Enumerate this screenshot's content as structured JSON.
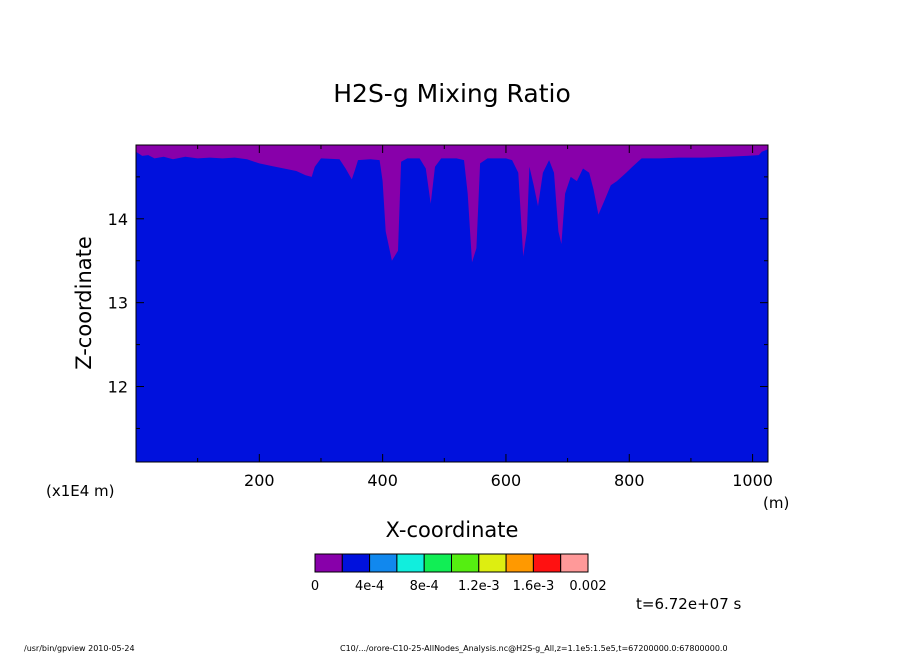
{
  "chart_data": {
    "type": "heatmap",
    "title": "H2S-g Mixing Ratio",
    "xlabel": "X-coordinate",
    "ylabel": "Z-coordinate",
    "x_unit": "(m)",
    "y_unit": "(x1E4 m)",
    "xlim": [
      0,
      1025
    ],
    "ylim": [
      11.1,
      14.88
    ],
    "x_ticks": [
      200,
      400,
      600,
      800,
      1000
    ],
    "y_ticks": [
      12,
      13,
      14
    ],
    "colorbar": {
      "colors": [
        "#8800aa",
        "#0011dd",
        "#1188ee",
        "#11eedd",
        "#11ee55",
        "#55ee11",
        "#ddee11",
        "#ff9900",
        "#ff1111",
        "#ff9999"
      ],
      "labels": [
        "0",
        "4e-4",
        "8e-4",
        "1.2e-3",
        "1.6e-3",
        "0.002"
      ]
    },
    "boundary_profile": [
      [
        0,
        14.8
      ],
      [
        10,
        14.75
      ],
      [
        20,
        14.76
      ],
      [
        30,
        14.72
      ],
      [
        45,
        14.74
      ],
      [
        60,
        14.71
      ],
      [
        80,
        14.74
      ],
      [
        100,
        14.72
      ],
      [
        120,
        14.73
      ],
      [
        140,
        14.72
      ],
      [
        160,
        14.73
      ],
      [
        180,
        14.71
      ],
      [
        200,
        14.66
      ],
      [
        220,
        14.63
      ],
      [
        240,
        14.6
      ],
      [
        260,
        14.57
      ],
      [
        275,
        14.52
      ],
      [
        285,
        14.5
      ],
      [
        290,
        14.62
      ],
      [
        300,
        14.72
      ],
      [
        330,
        14.71
      ],
      [
        340,
        14.6
      ],
      [
        350,
        14.47
      ],
      [
        355,
        14.58
      ],
      [
        360,
        14.7
      ],
      [
        380,
        14.71
      ],
      [
        395,
        14.7
      ],
      [
        400,
        14.45
      ],
      [
        405,
        13.85
      ],
      [
        415,
        13.5
      ],
      [
        425,
        13.62
      ],
      [
        430,
        14.68
      ],
      [
        440,
        14.72
      ],
      [
        460,
        14.72
      ],
      [
        470,
        14.6
      ],
      [
        478,
        14.18
      ],
      [
        485,
        14.62
      ],
      [
        495,
        14.72
      ],
      [
        520,
        14.72
      ],
      [
        532,
        14.7
      ],
      [
        538,
        14.3
      ],
      [
        545,
        13.48
      ],
      [
        552,
        13.65
      ],
      [
        558,
        14.66
      ],
      [
        570,
        14.72
      ],
      [
        600,
        14.72
      ],
      [
        610,
        14.7
      ],
      [
        620,
        14.55
      ],
      [
        628,
        13.55
      ],
      [
        634,
        13.85
      ],
      [
        638,
        14.62
      ],
      [
        645,
        14.4
      ],
      [
        652,
        14.15
      ],
      [
        660,
        14.55
      ],
      [
        670,
        14.7
      ],
      [
        678,
        14.55
      ],
      [
        685,
        13.85
      ],
      [
        690,
        13.7
      ],
      [
        696,
        14.3
      ],
      [
        705,
        14.5
      ],
      [
        715,
        14.45
      ],
      [
        725,
        14.6
      ],
      [
        735,
        14.55
      ],
      [
        742,
        14.35
      ],
      [
        750,
        14.05
      ],
      [
        760,
        14.22
      ],
      [
        770,
        14.4
      ],
      [
        780,
        14.45
      ],
      [
        795,
        14.55
      ],
      [
        805,
        14.62
      ],
      [
        820,
        14.72
      ],
      [
        850,
        14.72
      ],
      [
        880,
        14.73
      ],
      [
        920,
        14.73
      ],
      [
        960,
        14.74
      ],
      [
        990,
        14.75
      ],
      [
        1010,
        14.76
      ],
      [
        1015,
        14.8
      ],
      [
        1025,
        14.83
      ]
    ]
  },
  "annotations": {
    "time": "t=6.72e+07 s",
    "program": "/usr/bin/gpview   2010-05-24",
    "source": "C10/.../orore-C10-25-AllNodes_Analysis.nc@H2S-g_All,z=1.1e5:1.5e5,t=67200000.0:67800000.0"
  }
}
